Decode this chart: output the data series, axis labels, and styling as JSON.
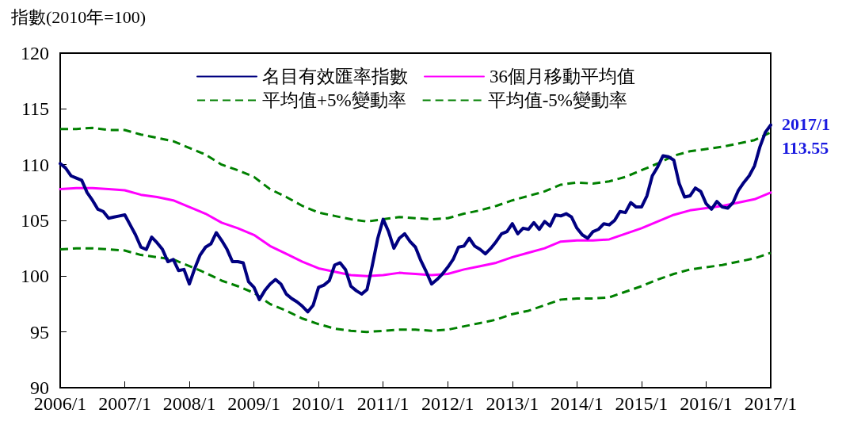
{
  "chart_data": {
    "type": "line",
    "ylabel": "指數(2010年=100)",
    "x": [
      "2006-01",
      "2006-02",
      "2006-03",
      "2006-04",
      "2006-05",
      "2006-06",
      "2006-07",
      "2006-08",
      "2006-09",
      "2006-10",
      "2006-11",
      "2006-12",
      "2007-01",
      "2007-02",
      "2007-03",
      "2007-04",
      "2007-05",
      "2007-06",
      "2007-07",
      "2007-08",
      "2007-09",
      "2007-10",
      "2007-11",
      "2007-12",
      "2008-01",
      "2008-02",
      "2008-03",
      "2008-04",
      "2008-05",
      "2008-06",
      "2008-07",
      "2008-08",
      "2008-09",
      "2008-10",
      "2008-11",
      "2008-12",
      "2009-01",
      "2009-02",
      "2009-03",
      "2009-04",
      "2009-05",
      "2009-06",
      "2009-07",
      "2009-08",
      "2009-09",
      "2009-10",
      "2009-11",
      "2009-12",
      "2010-01",
      "2010-02",
      "2010-03",
      "2010-04",
      "2010-05",
      "2010-06",
      "2010-07",
      "2010-08",
      "2010-09",
      "2010-10",
      "2010-11",
      "2010-12",
      "2011-01",
      "2011-02",
      "2011-03",
      "2011-04",
      "2011-05",
      "2011-06",
      "2011-07",
      "2011-08",
      "2011-09",
      "2011-10",
      "2011-11",
      "2011-12",
      "2012-01",
      "2012-02",
      "2012-03",
      "2012-04",
      "2012-05",
      "2012-06",
      "2012-07",
      "2012-08",
      "2012-09",
      "2012-10",
      "2012-11",
      "2012-12",
      "2013-01",
      "2013-02",
      "2013-03",
      "2013-04",
      "2013-05",
      "2013-06",
      "2013-07",
      "2013-08",
      "2013-09",
      "2013-10",
      "2013-11",
      "2013-12",
      "2014-01",
      "2014-02",
      "2014-03",
      "2014-04",
      "2014-05",
      "2014-06",
      "2014-07",
      "2014-08",
      "2014-09",
      "2014-10",
      "2014-11",
      "2014-12",
      "2015-01",
      "2015-02",
      "2015-03",
      "2015-04",
      "2015-05",
      "2015-06",
      "2015-07",
      "2015-08",
      "2015-09",
      "2015-10",
      "2015-11",
      "2015-12",
      "2016-01",
      "2016-02",
      "2016-03",
      "2016-04",
      "2016-05",
      "2016-06",
      "2016-07",
      "2016-08",
      "2016-09",
      "2016-10",
      "2016-11",
      "2016-12",
      "2017-01"
    ],
    "series": [
      {
        "name": "名目有效匯率指數",
        "color": "#000080",
        "line_style": "solid",
        "values": [
          110.1,
          109.7,
          109.0,
          108.8,
          108.6,
          107.5,
          106.8,
          106.0,
          105.8,
          105.2,
          105.3,
          105.4,
          105.5,
          104.6,
          103.7,
          102.6,
          102.4,
          103.5,
          103.0,
          102.4,
          101.3,
          101.5,
          100.5,
          100.6,
          99.3,
          100.7,
          101.9,
          102.6,
          102.9,
          103.9,
          103.2,
          102.4,
          101.3,
          101.3,
          101.2,
          99.5,
          99.0,
          97.9,
          98.7,
          99.3,
          99.7,
          99.3,
          98.4,
          98.0,
          97.7,
          97.3,
          96.8,
          97.4,
          99.0,
          99.2,
          99.6,
          101.0,
          101.2,
          100.6,
          99.1,
          98.7,
          98.4,
          98.8,
          101.0,
          103.4,
          105.1,
          104.0,
          102.5,
          103.4,
          103.8,
          103.1,
          102.6,
          101.4,
          100.4,
          99.3,
          99.7,
          100.2,
          100.8,
          101.5,
          102.6,
          102.7,
          103.4,
          102.7,
          102.4,
          102.0,
          102.5,
          103.1,
          103.8,
          104.0,
          104.7,
          103.8,
          104.3,
          104.2,
          104.8,
          104.2,
          104.9,
          104.5,
          105.5,
          105.4,
          105.6,
          105.3,
          104.3,
          103.7,
          103.4,
          104.0,
          104.2,
          104.7,
          104.6,
          105.0,
          105.8,
          105.7,
          106.6,
          106.2,
          106.2,
          107.2,
          109.0,
          109.8,
          110.8,
          110.7,
          110.4,
          108.3,
          107.1,
          107.2,
          107.9,
          107.6,
          106.5,
          106.0,
          106.7,
          106.2,
          106.1,
          106.6,
          107.7,
          108.4,
          109.0,
          109.9,
          111.6,
          112.9,
          113.55
        ]
      },
      {
        "name": "36個月移動平均值",
        "color": "#ff00ff",
        "line_style": "solid",
        "x": [
          "2006-01",
          "2006-04",
          "2006-07",
          "2006-10",
          "2007-01",
          "2007-04",
          "2007-07",
          "2007-10",
          "2008-01",
          "2008-04",
          "2008-07",
          "2008-10",
          "2009-01",
          "2009-04",
          "2009-07",
          "2009-10",
          "2010-01",
          "2010-04",
          "2010-07",
          "2010-10",
          "2011-01",
          "2011-04",
          "2011-07",
          "2011-10",
          "2012-01",
          "2012-04",
          "2012-07",
          "2012-10",
          "2013-01",
          "2013-04",
          "2013-07",
          "2013-10",
          "2014-01",
          "2014-04",
          "2014-07",
          "2014-10",
          "2015-01",
          "2015-04",
          "2015-07",
          "2015-10",
          "2016-01",
          "2016-04",
          "2016-07",
          "2016-10",
          "2017-01"
        ],
        "values": [
          107.8,
          107.9,
          107.9,
          107.8,
          107.7,
          107.3,
          107.1,
          106.8,
          106.2,
          105.6,
          104.8,
          104.3,
          103.7,
          102.7,
          102.0,
          101.3,
          100.7,
          100.4,
          100.1,
          100.0,
          100.1,
          100.3,
          100.2,
          100.1,
          100.2,
          100.6,
          100.9,
          101.2,
          101.7,
          102.1,
          102.5,
          103.1,
          103.2,
          103.2,
          103.3,
          103.8,
          104.3,
          104.9,
          105.5,
          105.9,
          106.1,
          106.3,
          106.6,
          106.9,
          107.5
        ]
      },
      {
        "name": "平均值+5%變動率",
        "color": "#008000",
        "line_style": "dashed",
        "x": [
          "2006-01",
          "2006-04",
          "2006-07",
          "2006-10",
          "2007-01",
          "2007-04",
          "2007-07",
          "2007-10",
          "2008-01",
          "2008-04",
          "2008-07",
          "2008-10",
          "2009-01",
          "2009-04",
          "2009-07",
          "2009-10",
          "2010-01",
          "2010-04",
          "2010-07",
          "2010-10",
          "2011-01",
          "2011-04",
          "2011-07",
          "2011-10",
          "2012-01",
          "2012-04",
          "2012-07",
          "2012-10",
          "2013-01",
          "2013-04",
          "2013-07",
          "2013-10",
          "2014-01",
          "2014-04",
          "2014-07",
          "2014-10",
          "2015-01",
          "2015-04",
          "2015-07",
          "2015-10",
          "2016-01",
          "2016-04",
          "2016-07",
          "2016-10",
          "2017-01"
        ],
        "values": [
          113.2,
          113.2,
          113.3,
          113.1,
          113.1,
          112.7,
          112.4,
          112.1,
          111.5,
          110.9,
          110.0,
          109.5,
          108.9,
          107.8,
          107.1,
          106.3,
          105.7,
          105.4,
          105.1,
          104.9,
          105.1,
          105.3,
          105.2,
          105.1,
          105.2,
          105.6,
          105.9,
          106.3,
          106.8,
          107.2,
          107.6,
          108.2,
          108.4,
          108.3,
          108.5,
          108.9,
          109.5,
          110.1,
          110.8,
          111.2,
          111.4,
          111.6,
          111.9,
          112.2,
          112.9
        ]
      },
      {
        "name": "平均值-5%變動率",
        "color": "#008000",
        "line_style": "dashed",
        "x": [
          "2006-01",
          "2006-04",
          "2006-07",
          "2006-10",
          "2007-01",
          "2007-04",
          "2007-07",
          "2007-10",
          "2008-01",
          "2008-04",
          "2008-07",
          "2008-10",
          "2009-01",
          "2009-04",
          "2009-07",
          "2009-10",
          "2010-01",
          "2010-04",
          "2010-07",
          "2010-10",
          "2011-01",
          "2011-04",
          "2011-07",
          "2011-10",
          "2012-01",
          "2012-04",
          "2012-07",
          "2012-10",
          "2013-01",
          "2013-04",
          "2013-07",
          "2013-10",
          "2014-01",
          "2014-04",
          "2014-07",
          "2014-10",
          "2015-01",
          "2015-04",
          "2015-07",
          "2015-10",
          "2016-01",
          "2016-04",
          "2016-07",
          "2016-10",
          "2017-01"
        ],
        "values": [
          102.4,
          102.5,
          102.5,
          102.4,
          102.3,
          101.9,
          101.7,
          101.5,
          100.9,
          100.3,
          99.6,
          99.1,
          98.5,
          97.5,
          96.9,
          96.2,
          95.7,
          95.3,
          95.1,
          95.0,
          95.1,
          95.2,
          95.2,
          95.1,
          95.2,
          95.5,
          95.8,
          96.1,
          96.6,
          96.9,
          97.4,
          97.9,
          98.0,
          98.0,
          98.1,
          98.6,
          99.1,
          99.7,
          100.2,
          100.6,
          100.8,
          101.0,
          101.3,
          101.6,
          102.1
        ]
      }
    ],
    "xlim": [
      "2006-01",
      "2017-01"
    ],
    "xticks": [
      {
        "value": "2006-01",
        "label": "2006/1"
      },
      {
        "value": "2007-01",
        "label": "2007/1"
      },
      {
        "value": "2008-01",
        "label": "2008/1"
      },
      {
        "value": "2009-01",
        "label": "2009/1"
      },
      {
        "value": "2010-01",
        "label": "2010/1"
      },
      {
        "value": "2011-01",
        "label": "2011/1"
      },
      {
        "value": "2012-01",
        "label": "2012/1"
      },
      {
        "value": "2013-01",
        "label": "2013/1"
      },
      {
        "value": "2014-01",
        "label": "2014/1"
      },
      {
        "value": "2015-01",
        "label": "2015/1"
      },
      {
        "value": "2016-01",
        "label": "2016/1"
      },
      {
        "value": "2017-01",
        "label": "2017/1"
      }
    ],
    "ylim": [
      90,
      120
    ],
    "yticks": [
      90,
      95,
      100,
      105,
      110,
      115,
      120
    ],
    "annotations": [
      {
        "text": "2017/1\n113.55",
        "x": "2017-01",
        "y": 113.55
      }
    ],
    "grid": false,
    "legend": "top",
    "marker": "none"
  }
}
